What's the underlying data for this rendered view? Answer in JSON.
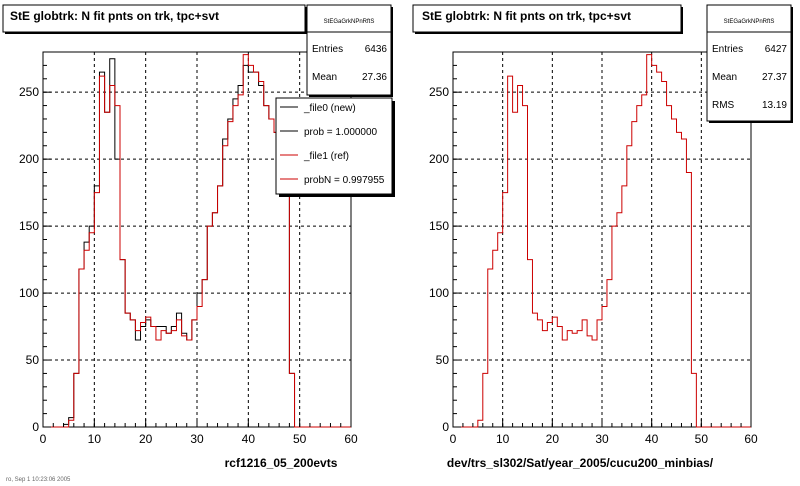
{
  "footer": "ro, Sep 1 10:23:06 2005",
  "chart_data": [
    {
      "type": "histogram",
      "title": "StE globtrk: N fit pnts on trk, tpc+svt",
      "xlabel": "rcf1216_05_200evts",
      "xlim": [
        0,
        60
      ],
      "ylim": [
        0,
        280
      ],
      "xticks": [
        0,
        10,
        20,
        30,
        40,
        50,
        60
      ],
      "yticks": [
        0,
        50,
        100,
        150,
        200,
        250
      ],
      "grid": true,
      "bin_width": 1,
      "x": [
        0,
        1,
        2,
        3,
        4,
        5,
        6,
        7,
        8,
        9,
        10,
        11,
        12,
        13,
        14,
        15,
        16,
        17,
        18,
        19,
        20,
        21,
        22,
        23,
        24,
        25,
        26,
        27,
        28,
        29,
        30,
        31,
        32,
        33,
        34,
        35,
        36,
        37,
        38,
        39,
        40,
        41,
        42,
        43,
        44,
        45,
        46,
        47,
        48,
        49,
        50,
        51,
        52,
        53,
        54,
        55,
        56,
        57,
        58,
        59
      ],
      "series": [
        {
          "name": "_file0 (new)",
          "color": "#000000",
          "values": [
            0,
            0,
            0,
            0,
            2,
            7,
            40,
            118,
            138,
            150,
            180,
            265,
            235,
            275,
            200,
            125,
            85,
            80,
            65,
            75,
            80,
            75,
            75,
            75,
            70,
            75,
            85,
            70,
            65,
            80,
            100,
            110,
            150,
            160,
            180,
            215,
            230,
            245,
            255,
            270,
            265,
            265,
            255,
            240,
            230,
            220,
            215,
            190,
            40,
            0,
            0,
            0,
            0,
            0,
            0,
            0,
            0,
            0,
            0,
            0
          ]
        },
        {
          "name": "_file1 (ref)",
          "color": "#cc0000",
          "values": [
            0,
            0,
            0,
            0,
            0,
            5,
            40,
            118,
            132,
            145,
            175,
            262,
            235,
            255,
            240,
            125,
            85,
            80,
            72,
            78,
            82,
            75,
            65,
            72,
            70,
            72,
            80,
            68,
            65,
            80,
            90,
            110,
            150,
            160,
            180,
            210,
            228,
            240,
            248,
            278,
            270,
            265,
            258,
            240,
            230,
            220,
            215,
            190,
            40,
            0,
            0,
            0,
            0,
            0,
            0,
            0,
            0,
            0,
            0,
            0
          ]
        }
      ],
      "stats": {
        "title": "StEGaGrkNPnRftS",
        "entries_label": "Entries",
        "entries": "6436",
        "mean_label": "Mean",
        "mean": "27.36"
      },
      "legend": {
        "position": "top-right",
        "entries": [
          {
            "label": "_file0 (new)",
            "color": "#000000"
          },
          {
            "label": "prob = 1.000000",
            "color": "#000000"
          },
          {
            "label": "_file1 (ref)",
            "color": "#cc0000"
          },
          {
            "label": "probN = 0.997955",
            "color": "#cc0000"
          }
        ]
      }
    },
    {
      "type": "histogram",
      "title": "StE globtrk: N fit pnts on trk, tpc+svt",
      "xlabel": "dev/trs_sl302/Sat/year_2005/cucu200_minbias/",
      "xlim": [
        0,
        60
      ],
      "ylim": [
        0,
        280
      ],
      "xticks": [
        0,
        10,
        20,
        30,
        40,
        50,
        60
      ],
      "yticks": [
        0,
        50,
        100,
        150,
        200,
        250
      ],
      "grid": true,
      "bin_width": 1,
      "x": [
        0,
        1,
        2,
        3,
        4,
        5,
        6,
        7,
        8,
        9,
        10,
        11,
        12,
        13,
        14,
        15,
        16,
        17,
        18,
        19,
        20,
        21,
        22,
        23,
        24,
        25,
        26,
        27,
        28,
        29,
        30,
        31,
        32,
        33,
        34,
        35,
        36,
        37,
        38,
        39,
        40,
        41,
        42,
        43,
        44,
        45,
        46,
        47,
        48,
        49,
        50,
        51,
        52,
        53,
        54,
        55,
        56,
        57,
        58,
        59
      ],
      "series": [
        {
          "name": "",
          "color": "#cc0000",
          "values": [
            0,
            0,
            0,
            0,
            0,
            5,
            40,
            118,
            132,
            145,
            175,
            262,
            235,
            255,
            240,
            125,
            85,
            80,
            72,
            78,
            82,
            75,
            65,
            72,
            70,
            72,
            80,
            68,
            65,
            80,
            90,
            110,
            150,
            160,
            180,
            210,
            228,
            240,
            248,
            278,
            270,
            265,
            258,
            240,
            230,
            220,
            215,
            190,
            40,
            0,
            0,
            0,
            0,
            0,
            0,
            0,
            0,
            0,
            0,
            0
          ]
        }
      ],
      "stats": {
        "title": "StEGaGrkNPnRftS",
        "entries_label": "Entries",
        "entries": "6427",
        "mean_label": "Mean",
        "mean": "27.37",
        "rms_label": "RMS",
        "rms": "13.19"
      }
    }
  ]
}
